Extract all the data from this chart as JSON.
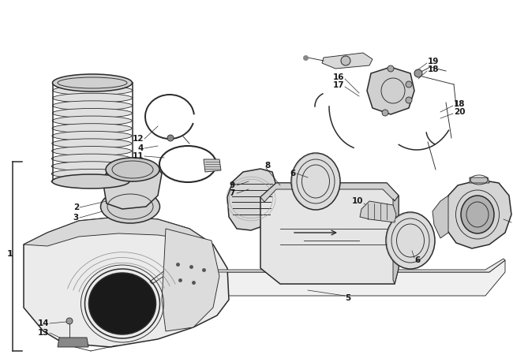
{
  "background_color": "#ffffff",
  "line_color": "#2a2a2a",
  "label_color": "#1a1a1a",
  "lw_main": 1.1,
  "lw_thin": 0.65,
  "figsize": [
    6.5,
    4.59
  ],
  "dpi": 100
}
